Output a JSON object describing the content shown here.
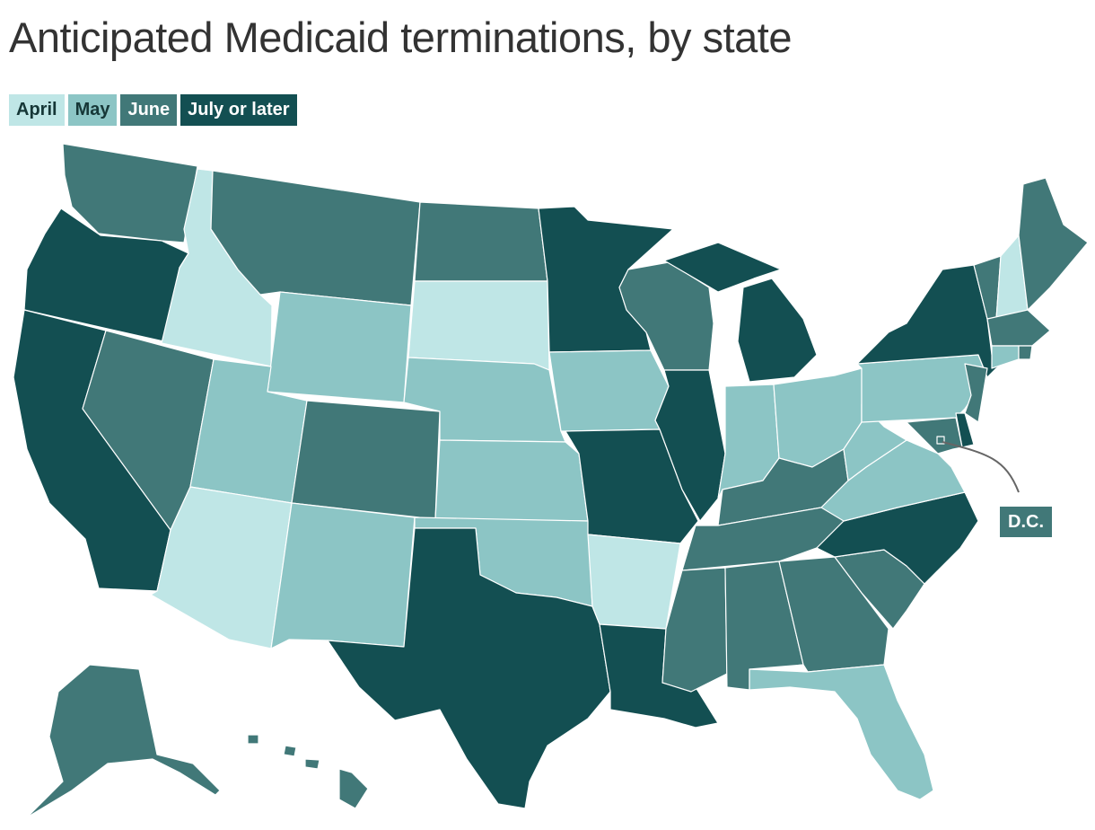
{
  "title": "Anticipated Medicaid terminations, by state",
  "legend": [
    {
      "label": "April",
      "color": "#bfe6e6",
      "text_color": "#163737"
    },
    {
      "label": "May",
      "color": "#8cc5c5",
      "text_color": "#163737"
    },
    {
      "label": "June",
      "color": "#417878",
      "text_color": "#ffffff"
    },
    {
      "label": "July or later",
      "color": "#134f52",
      "text_color": "#ffffff"
    }
  ],
  "colors": {
    "April": "#bfe6e6",
    "May": "#8cc5c5",
    "June": "#417878",
    "July or later": "#134f52"
  },
  "states": {
    "WA": "June",
    "OR": "July or later",
    "CA": "July or later",
    "ID": "April",
    "NV": "June",
    "MT": "June",
    "WY": "May",
    "UT": "May",
    "AZ": "April",
    "CO": "June",
    "NM": "May",
    "ND": "June",
    "SD": "April",
    "NE": "May",
    "KS": "May",
    "OK": "May",
    "TX": "July or later",
    "MN": "July or later",
    "IA": "May",
    "MO": "July or later",
    "AR": "April",
    "LA": "July or later",
    "WI": "June",
    "IL": "July or later",
    "MI": "July or later",
    "IN": "May",
    "OH": "May",
    "KY": "June",
    "TN": "June",
    "MS": "June",
    "AL": "June",
    "GA": "June",
    "FL": "May",
    "SC": "June",
    "NC": "July or later",
    "VA": "May",
    "WV": "May",
    "PA": "May",
    "NY": "July or later",
    "VT": "June",
    "NH": "April",
    "ME": "June",
    "MA": "June",
    "CT": "May",
    "RI": "June",
    "NJ": "June",
    "DE": "July or later",
    "MD": "June",
    "DC": "June",
    "AK": "June",
    "HI": "June"
  },
  "dc_label": "D.C."
}
